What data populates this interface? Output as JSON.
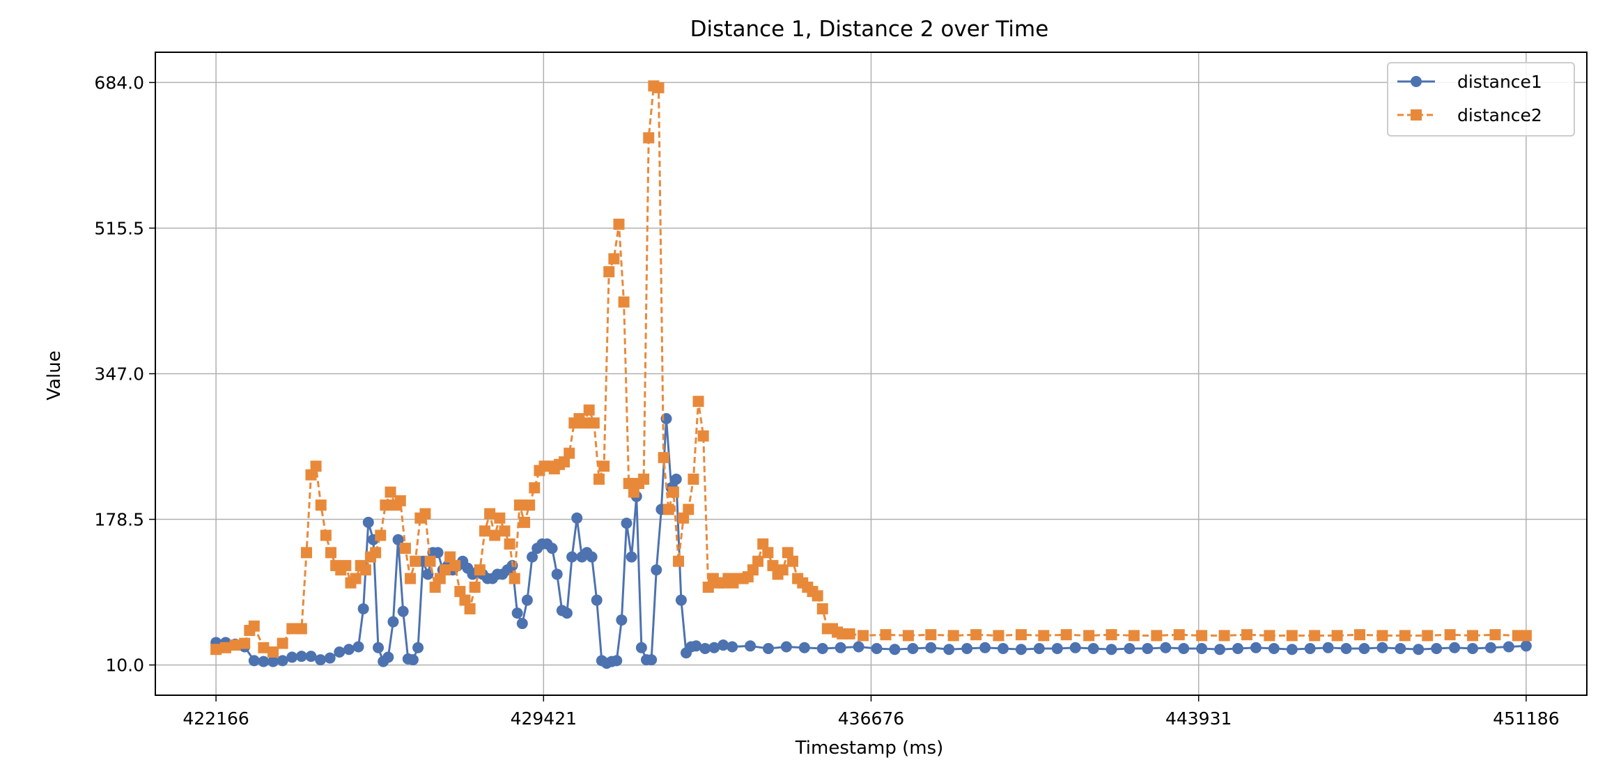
{
  "chart_data": {
    "type": "line",
    "title": "Distance 1, Distance 2 over Time",
    "xlabel": "Timestamp (ms)",
    "ylabel": "Value",
    "xlim": [
      420822,
      452530
    ],
    "ylim": [
      -25,
      719
    ],
    "x_ticks": [
      422166,
      429421,
      436676,
      443931,
      451186
    ],
    "x_tick_labels": [
      "422166",
      "429421",
      "436676",
      "443931",
      "451186"
    ],
    "y_ticks": [
      10.0,
      178.5,
      347.0,
      515.5,
      684.0
    ],
    "y_tick_labels": [
      "10.0",
      "178.5",
      "347.0",
      "515.5",
      "684.0"
    ],
    "grid": true,
    "legend_position": "top-right",
    "series": [
      {
        "name": "distance1",
        "color": "#4c72b0",
        "marker": "circle",
        "linestyle": "solid",
        "points": [
          [
            422166,
            36
          ],
          [
            422380,
            36
          ],
          [
            422590,
            34
          ],
          [
            422800,
            31
          ],
          [
            423010,
            15
          ],
          [
            423220,
            14
          ],
          [
            423430,
            14
          ],
          [
            423640,
            15
          ],
          [
            423850,
            19
          ],
          [
            424060,
            20
          ],
          [
            424270,
            20
          ],
          [
            424480,
            16
          ],
          [
            424690,
            18
          ],
          [
            424900,
            25
          ],
          [
            425110,
            28
          ],
          [
            425320,
            31
          ],
          [
            425430,
            75
          ],
          [
            425540,
            175
          ],
          [
            425650,
            155
          ],
          [
            425760,
            30
          ],
          [
            425870,
            14
          ],
          [
            425980,
            19
          ],
          [
            426090,
            60
          ],
          [
            426200,
            155
          ],
          [
            426310,
            72
          ],
          [
            426420,
            17
          ],
          [
            426530,
            16
          ],
          [
            426640,
            30
          ],
          [
            426750,
            130
          ],
          [
            426860,
            115
          ],
          [
            426970,
            140
          ],
          [
            427080,
            140
          ],
          [
            427190,
            120
          ],
          [
            427300,
            125
          ],
          [
            427410,
            120
          ],
          [
            427520,
            125
          ],
          [
            427630,
            130
          ],
          [
            427740,
            122
          ],
          [
            427850,
            115
          ],
          [
            427960,
            118
          ],
          [
            428070,
            115
          ],
          [
            428180,
            110
          ],
          [
            428290,
            110
          ],
          [
            428400,
            115
          ],
          [
            428510,
            115
          ],
          [
            428620,
            120
          ],
          [
            428730,
            125
          ],
          [
            428840,
            70
          ],
          [
            428950,
            58
          ],
          [
            429060,
            85
          ],
          [
            429170,
            135
          ],
          [
            429280,
            145
          ],
          [
            429390,
            150
          ],
          [
            429500,
            150
          ],
          [
            429610,
            145
          ],
          [
            429720,
            115
          ],
          [
            429830,
            73
          ],
          [
            429940,
            70
          ],
          [
            430050,
            135
          ],
          [
            430160,
            180
          ],
          [
            430270,
            135
          ],
          [
            430380,
            140
          ],
          [
            430490,
            135
          ],
          [
            430600,
            85
          ],
          [
            430710,
            15
          ],
          [
            430820,
            12
          ],
          [
            430930,
            14
          ],
          [
            431040,
            15
          ],
          [
            431150,
            62
          ],
          [
            431260,
            174
          ],
          [
            431370,
            135
          ],
          [
            431480,
            205
          ],
          [
            431590,
            30
          ],
          [
            431700,
            16
          ],
          [
            431810,
            16
          ],
          [
            431920,
            120
          ],
          [
            432030,
            190
          ],
          [
            432140,
            295
          ],
          [
            432250,
            215
          ],
          [
            432360,
            225
          ],
          [
            432470,
            85
          ],
          [
            432580,
            24
          ],
          [
            432690,
            31
          ],
          [
            432800,
            32
          ],
          [
            433000,
            29
          ],
          [
            433200,
            30
          ],
          [
            433400,
            33
          ],
          [
            433600,
            31
          ],
          [
            434000,
            32
          ],
          [
            434400,
            29
          ],
          [
            434800,
            31
          ],
          [
            435200,
            30
          ],
          [
            435600,
            29
          ],
          [
            436000,
            30
          ],
          [
            436400,
            31
          ],
          [
            436800,
            29
          ],
          [
            437200,
            28
          ],
          [
            437600,
            29
          ],
          [
            438000,
            30
          ],
          [
            438400,
            28
          ],
          [
            438800,
            29
          ],
          [
            439200,
            30
          ],
          [
            439600,
            29
          ],
          [
            440000,
            28
          ],
          [
            440400,
            29
          ],
          [
            440800,
            29
          ],
          [
            441200,
            30
          ],
          [
            441600,
            29
          ],
          [
            442000,
            28
          ],
          [
            442400,
            29
          ],
          [
            442800,
            29
          ],
          [
            443200,
            30
          ],
          [
            443600,
            29
          ],
          [
            444000,
            29
          ],
          [
            444400,
            28
          ],
          [
            444800,
            29
          ],
          [
            445200,
            30
          ],
          [
            445600,
            29
          ],
          [
            446000,
            28
          ],
          [
            446400,
            29
          ],
          [
            446800,
            30
          ],
          [
            447200,
            29
          ],
          [
            447600,
            29
          ],
          [
            448000,
            30
          ],
          [
            448400,
            29
          ],
          [
            448800,
            28
          ],
          [
            449200,
            29
          ],
          [
            449600,
            30
          ],
          [
            450000,
            29
          ],
          [
            450400,
            30
          ],
          [
            450800,
            31
          ],
          [
            451186,
            32
          ]
        ]
      },
      {
        "name": "distance2",
        "color": "#e8893a",
        "marker": "square",
        "linestyle": "dashed",
        "points": [
          [
            422166,
            28
          ],
          [
            422380,
            30
          ],
          [
            422590,
            33
          ],
          [
            422800,
            35
          ],
          [
            422910,
            50
          ],
          [
            423010,
            55
          ],
          [
            423220,
            30
          ],
          [
            423430,
            25
          ],
          [
            423640,
            35
          ],
          [
            423850,
            52
          ],
          [
            424060,
            52
          ],
          [
            424170,
            140
          ],
          [
            424270,
            230
          ],
          [
            424380,
            240
          ],
          [
            424490,
            195
          ],
          [
            424600,
            160
          ],
          [
            424710,
            140
          ],
          [
            424820,
            125
          ],
          [
            424930,
            120
          ],
          [
            425040,
            125
          ],
          [
            425150,
            105
          ],
          [
            425260,
            110
          ],
          [
            425370,
            125
          ],
          [
            425480,
            120
          ],
          [
            425590,
            135
          ],
          [
            425700,
            140
          ],
          [
            425810,
            160
          ],
          [
            425920,
            195
          ],
          [
            426030,
            210
          ],
          [
            426140,
            195
          ],
          [
            426250,
            200
          ],
          [
            426360,
            145
          ],
          [
            426470,
            110
          ],
          [
            426580,
            130
          ],
          [
            426690,
            180
          ],
          [
            426800,
            185
          ],
          [
            426910,
            130
          ],
          [
            427020,
            100
          ],
          [
            427130,
            110
          ],
          [
            427240,
            120
          ],
          [
            427350,
            135
          ],
          [
            427460,
            125
          ],
          [
            427570,
            95
          ],
          [
            427680,
            85
          ],
          [
            427790,
            75
          ],
          [
            427900,
            100
          ],
          [
            428010,
            120
          ],
          [
            428120,
            165
          ],
          [
            428230,
            185
          ],
          [
            428340,
            160
          ],
          [
            428450,
            180
          ],
          [
            428560,
            165
          ],
          [
            428670,
            150
          ],
          [
            428780,
            110
          ],
          [
            428890,
            195
          ],
          [
            429000,
            175
          ],
          [
            429110,
            195
          ],
          [
            429220,
            215
          ],
          [
            429330,
            235
          ],
          [
            429440,
            240
          ],
          [
            429550,
            240
          ],
          [
            429660,
            237
          ],
          [
            429770,
            242
          ],
          [
            429880,
            245
          ],
          [
            429990,
            255
          ],
          [
            430100,
            290
          ],
          [
            430210,
            295
          ],
          [
            430320,
            290
          ],
          [
            430430,
            305
          ],
          [
            430540,
            290
          ],
          [
            430650,
            225
          ],
          [
            430760,
            240
          ],
          [
            430870,
            465
          ],
          [
            430980,
            480
          ],
          [
            431090,
            520
          ],
          [
            431200,
            430
          ],
          [
            431310,
            220
          ],
          [
            431420,
            210
          ],
          [
            431530,
            220
          ],
          [
            431640,
            225
          ],
          [
            431750,
            620
          ],
          [
            431860,
            680
          ],
          [
            431970,
            678
          ],
          [
            432080,
            250
          ],
          [
            432190,
            190
          ],
          [
            432300,
            210
          ],
          [
            432410,
            130
          ],
          [
            432520,
            180
          ],
          [
            432630,
            190
          ],
          [
            432740,
            225
          ],
          [
            432850,
            315
          ],
          [
            432960,
            275
          ],
          [
            433070,
            100
          ],
          [
            433180,
            110
          ],
          [
            433290,
            105
          ],
          [
            433400,
            105
          ],
          [
            433510,
            110
          ],
          [
            433620,
            105
          ],
          [
            433730,
            110
          ],
          [
            433840,
            110
          ],
          [
            433950,
            112
          ],
          [
            434060,
            120
          ],
          [
            434170,
            130
          ],
          [
            434280,
            150
          ],
          [
            434390,
            140
          ],
          [
            434500,
            125
          ],
          [
            434610,
            115
          ],
          [
            434720,
            120
          ],
          [
            434830,
            140
          ],
          [
            434940,
            130
          ],
          [
            435050,
            110
          ],
          [
            435160,
            105
          ],
          [
            435270,
            100
          ],
          [
            435380,
            95
          ],
          [
            435490,
            90
          ],
          [
            435600,
            75
          ],
          [
            435710,
            52
          ],
          [
            435820,
            52
          ],
          [
            435930,
            48
          ],
          [
            436040,
            46
          ],
          [
            436200,
            46
          ],
          [
            436500,
            44
          ],
          [
            437000,
            45
          ],
          [
            437500,
            44
          ],
          [
            438000,
            45
          ],
          [
            438500,
            44
          ],
          [
            439000,
            45
          ],
          [
            439500,
            44
          ],
          [
            440000,
            45
          ],
          [
            440500,
            44
          ],
          [
            441000,
            45
          ],
          [
            441500,
            44
          ],
          [
            442000,
            45
          ],
          [
            442500,
            44
          ],
          [
            443000,
            44
          ],
          [
            443500,
            45
          ],
          [
            444000,
            44
          ],
          [
            444500,
            44
          ],
          [
            445000,
            45
          ],
          [
            445500,
            44
          ],
          [
            446000,
            44
          ],
          [
            446500,
            44
          ],
          [
            447000,
            44
          ],
          [
            447500,
            45
          ],
          [
            448000,
            44
          ],
          [
            448500,
            44
          ],
          [
            449000,
            44
          ],
          [
            449500,
            45
          ],
          [
            450000,
            44
          ],
          [
            450500,
            45
          ],
          [
            451000,
            44
          ],
          [
            451186,
            44
          ]
        ]
      }
    ]
  }
}
